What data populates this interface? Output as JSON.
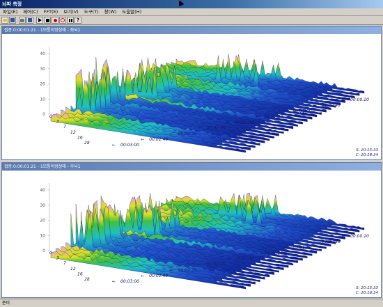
{
  "window": {
    "title": "뇌파 측정"
  },
  "menu": [
    "파일(E)",
    "제어(C)",
    "FFT(E)",
    "보기(V)",
    "도구(T)",
    "창(W)",
    "도움말(H)"
  ],
  "toolbar": [
    "open",
    "save",
    "print",
    "save2",
    "play",
    "stop",
    "record",
    "stop2",
    "pause",
    "help"
  ],
  "panes": [
    {
      "title": "접종:0:00:01:21 - 1모퉁이방상태 - 좌뇌1",
      "y_labels": [
        "40",
        "30",
        "20",
        "10",
        "0"
      ],
      "depth_labels": [
        "0",
        "3",
        "7",
        "12",
        "16",
        "28"
      ],
      "time_labels": [
        "00:00:20",
        "00:00:40",
        "00:01:00",
        "00:01:20",
        "00:01:40",
        "00:02:00",
        "00:02:20",
        "00:02:40",
        "00:03:00"
      ],
      "corner_s": "S: 20:15:33",
      "corner_c": "C: 20:18:34"
    },
    {
      "title": "접종:0:00:01:21 - 1모퉁이방상태 - 우뇌1",
      "y_labels": [
        "40",
        "30",
        "20",
        "10",
        "0"
      ],
      "depth_labels": [
        "0",
        "3",
        "7",
        "12",
        "16",
        "28"
      ],
      "time_labels": [
        "00:00:20",
        "00:00:40",
        "00:01:00",
        "00:01:20",
        "00:01:40",
        "00:02:00",
        "00:02:20",
        "00:02:40",
        "00:03:00"
      ],
      "corner_s": "S: 20:15:33",
      "corner_c": "C: 20:18:34"
    }
  ],
  "status": "준비",
  "colors": {
    "dark_blue": "#0a1a8a",
    "blue": "#2255cc",
    "cyan": "#20c0c0",
    "green": "#40c040",
    "yellow": "#e0e020",
    "pink": "#e8a0d8",
    "floor": "#e8f4ff"
  }
}
